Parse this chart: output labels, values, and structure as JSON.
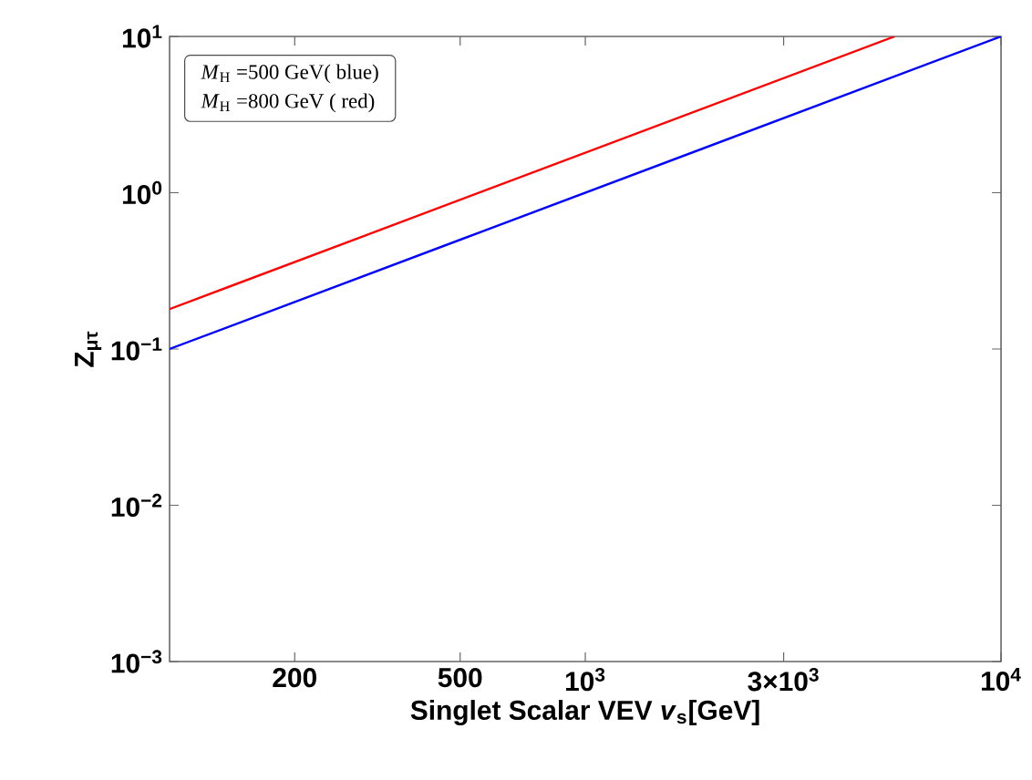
{
  "chart_data": {
    "type": "line",
    "xlabel": "Singlet Scalar VEV *v*$_{s}$[GeV]",
    "ylabel": "Z$_{μτ}$",
    "log": "xy",
    "xlim": [
      100,
      10000
    ],
    "ylim": [
      0.001,
      10
    ],
    "xticks": [
      200,
      500,
      {
        "value": 1000,
        "label": "10$^{3}$"
      },
      {
        "value": 3000,
        "label": "3×10$^{3}$"
      },
      {
        "value": 10000,
        "label": "10$^{4}$"
      }
    ],
    "yticks": [
      {
        "value": 0.001,
        "label": "10$^{−3}$"
      },
      {
        "value": 0.01,
        "label": "10$^{−2}$"
      },
      {
        "value": 0.1,
        "label": "10$^{−1}$"
      },
      {
        "value": 1,
        "label": "10$^{0}$"
      },
      {
        "value": 10,
        "label": "10$^{1}$"
      }
    ],
    "annotations": [
      "*M*$_{H}$ =500 GeV( blue)",
      "*M*$_{H}$ =800 GeV ( red)"
    ],
    "series": [
      {
        "color": "#0000ff",
        "x": [
          100,
          10000
        ],
        "values": [
          0.1,
          10
        ]
      },
      {
        "color": "#ff0000",
        "x": [
          100,
          5550
        ],
        "values": [
          0.18,
          10
        ]
      }
    ]
  }
}
